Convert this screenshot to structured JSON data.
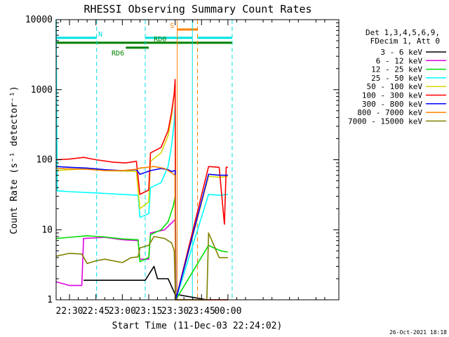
{
  "chart_data": {
    "type": "line",
    "title": "RHESSI Observing Summary Count Rates",
    "xlabel": "Start Time (11-Dec-03 22:24:02)",
    "ylabel": "Count Rate (s⁻¹ detector⁻¹)",
    "yscale": "log",
    "ylim": [
      1,
      10000
    ],
    "xlim_minutes": [
      22.4,
      183
    ],
    "x_ticks": [
      {
        "label": "22:30",
        "min": 30
      },
      {
        "label": "22:45",
        "min": 45
      },
      {
        "label": "23:00",
        "min": 60
      },
      {
        "label": "23:15",
        "min": 75
      },
      {
        "label": "23:30",
        "min": 90
      },
      {
        "label": "23:45",
        "min": 105
      },
      {
        "label": "00:00",
        "min": 120
      }
    ],
    "y_ticks": [
      {
        "label": "1",
        "v": 1
      },
      {
        "label": "10",
        "v": 10
      },
      {
        "label": "100",
        "v": 100
      },
      {
        "label": "1000",
        "v": 1000
      },
      {
        "label": "10000",
        "v": 10000
      }
    ],
    "legend_header": [
      "Det 1,3,4,5,6,9,",
      "FDecim 1, Att 0"
    ],
    "legend_position": "right",
    "series": [
      {
        "name": "3 - 6 keV",
        "color": "#000000",
        "points": [
          [
            38,
            1.9
          ],
          [
            50,
            1.9
          ],
          [
            59,
            1.9
          ],
          [
            69,
            1.9
          ],
          [
            73,
            1.9
          ],
          [
            78,
            3.0
          ],
          [
            80,
            2.0
          ],
          [
            86,
            2.0
          ],
          [
            90,
            1.2
          ],
          [
            108,
            1.0
          ],
          [
            120,
            1.0
          ]
        ]
      },
      {
        "name": "6 - 12 keV",
        "color": "#e000e0",
        "points": [
          [
            22.5,
            1.8
          ],
          [
            30,
            1.6
          ],
          [
            37,
            1.6
          ],
          [
            38,
            7.5
          ],
          [
            50,
            7.8
          ],
          [
            60,
            7.2
          ],
          [
            69,
            7.0
          ],
          [
            70,
            3.8
          ],
          [
            75,
            3.8
          ],
          [
            76,
            9.0
          ],
          [
            84,
            10.0
          ],
          [
            90,
            14.0
          ],
          [
            90.4,
            1.0
          ],
          [
            108,
            1.0
          ],
          [
            120,
            1.0
          ]
        ]
      },
      {
        "name": "12 - 25 keV",
        "color": "#00e000",
        "points": [
          [
            22.5,
            7.5
          ],
          [
            30,
            7.8
          ],
          [
            40,
            8.2
          ],
          [
            50,
            7.9
          ],
          [
            60,
            7.4
          ],
          [
            69,
            7.2
          ],
          [
            70,
            3.5
          ],
          [
            75,
            4.0
          ],
          [
            76,
            8.5
          ],
          [
            82,
            10.0
          ],
          [
            86,
            13.0
          ],
          [
            89,
            22.0
          ],
          [
            90,
            30.0
          ],
          [
            90.4,
            1.0
          ],
          [
            109,
            6.0
          ],
          [
            112,
            5.5
          ],
          [
            116,
            5.0
          ],
          [
            120,
            4.8
          ]
        ]
      },
      {
        "name": "25 - 50 keV",
        "color": "#00ffff",
        "points": [
          [
            22.4,
            10000
          ],
          [
            23,
            36
          ],
          [
            30,
            35
          ],
          [
            40,
            34
          ],
          [
            50,
            33
          ],
          [
            60,
            32
          ],
          [
            69,
            31
          ],
          [
            70,
            15
          ],
          [
            75,
            17
          ],
          [
            76,
            40
          ],
          [
            82,
            47
          ],
          [
            86,
            80
          ],
          [
            88,
            160
          ],
          [
            89.5,
            350
          ],
          [
            90,
            600
          ],
          [
            90.4,
            1.0
          ],
          [
            109,
            32
          ],
          [
            115,
            31
          ],
          [
            120,
            32
          ]
        ]
      },
      {
        "name": "50 - 100 keV",
        "color": "#d8d800",
        "points": [
          [
            22.5,
            70
          ],
          [
            30,
            72
          ],
          [
            40,
            74
          ],
          [
            50,
            70
          ],
          [
            60,
            69
          ],
          [
            68,
            68
          ],
          [
            70,
            20
          ],
          [
            75,
            25
          ],
          [
            76,
            95
          ],
          [
            82,
            125
          ],
          [
            86,
            220
          ],
          [
            88,
            420
          ],
          [
            89.5,
            900
          ],
          [
            90,
            1200
          ],
          [
            90.4,
            1.0
          ],
          [
            109,
            58
          ],
          [
            115,
            56
          ],
          [
            120,
            58
          ]
        ]
      },
      {
        "name": "100 - 300 keV",
        "color": "#ff0000",
        "points": [
          [
            22.5,
            100
          ],
          [
            30,
            102
          ],
          [
            38,
            108
          ],
          [
            45,
            100
          ],
          [
            55,
            92
          ],
          [
            62,
            90
          ],
          [
            68,
            95
          ],
          [
            70,
            32
          ],
          [
            75,
            37
          ],
          [
            76,
            125
          ],
          [
            82,
            150
          ],
          [
            86,
            260
          ],
          [
            88,
            480
          ],
          [
            89.5,
            900
          ],
          [
            90,
            1400
          ],
          [
            90.4,
            1.0
          ],
          [
            109,
            80
          ],
          [
            115,
            78
          ],
          [
            118,
            12
          ],
          [
            119,
            78
          ],
          [
            120,
            78
          ]
        ]
      },
      {
        "name": "300 - 800 keV",
        "color": "#0000ff",
        "points": [
          [
            22.5,
            80
          ],
          [
            30,
            78
          ],
          [
            40,
            76
          ],
          [
            50,
            72
          ],
          [
            60,
            70
          ],
          [
            68,
            72
          ],
          [
            70,
            62
          ],
          [
            76,
            70
          ],
          [
            82,
            75
          ],
          [
            86,
            72
          ],
          [
            88,
            68
          ],
          [
            90,
            70
          ],
          [
            90.4,
            1.0
          ],
          [
            109,
            62
          ],
          [
            115,
            60
          ],
          [
            120,
            60
          ]
        ]
      },
      {
        "name": "800 - 7000 keV",
        "color": "#ff8000",
        "points": [
          [
            22.5,
            75
          ],
          [
            30,
            74
          ],
          [
            40,
            73
          ],
          [
            50,
            70
          ],
          [
            60,
            70
          ],
          [
            68,
            73
          ],
          [
            70,
            76
          ],
          [
            78,
            80
          ],
          [
            84,
            75
          ],
          [
            88,
            65
          ],
          [
            89.9,
            60
          ],
          [
            90.2,
            1.0
          ],
          [
            91,
            1.0
          ],
          [
            108,
            1.0
          ],
          [
            120,
            1.0
          ]
        ]
      },
      {
        "name": "7000 - 15000 keV",
        "color": "#808000",
        "points": [
          [
            22.5,
            4.2
          ],
          [
            30,
            4.6
          ],
          [
            37,
            4.5
          ],
          [
            40,
            3.3
          ],
          [
            45,
            3.6
          ],
          [
            50,
            3.8
          ],
          [
            60,
            3.4
          ],
          [
            65,
            4.0
          ],
          [
            69,
            4.1
          ],
          [
            70,
            5.5
          ],
          [
            75,
            6.0
          ],
          [
            78,
            8.0
          ],
          [
            84,
            7.5
          ],
          [
            88,
            6.5
          ],
          [
            89.5,
            5.0
          ],
          [
            90.2,
            1.0
          ],
          [
            108,
            1.0
          ],
          [
            109,
            9.0
          ],
          [
            115,
            4.0
          ],
          [
            120,
            4.0
          ]
        ]
      }
    ],
    "vlines": [
      {
        "min": 45.4,
        "color": "#00e0e0",
        "style": "dashed"
      },
      {
        "min": 73.0,
        "color": "#00e0e0",
        "style": "dashed"
      },
      {
        "min": 91.2,
        "color": "#ff8000",
        "style": "solid"
      },
      {
        "min": 99.8,
        "color": "#00e0e0",
        "style": "solid"
      },
      {
        "min": 102.7,
        "color": "#ff8000",
        "style": "dashed"
      },
      {
        "min": 122.4,
        "color": "#00e0e0",
        "style": "dashed"
      }
    ],
    "flag_bars": [
      {
        "label": "N",
        "color": "#00e0e0",
        "y_log": 3.74,
        "segments": [
          [
            22.4,
            45.4
          ],
          [
            73.0,
            99.8
          ],
          [
            102.7,
            122.4
          ]
        ],
        "label_at": 47.5
      },
      {
        "label": "S",
        "color": "#ff8000",
        "y_log": 3.86,
        "segments": [
          [
            91.2,
            102.7
          ]
        ],
        "label_at": 88.2
      },
      {
        "label": "RD0",
        "color": "#008000",
        "y_log": 3.67,
        "segments": [
          [
            22.4,
            122.4
          ]
        ],
        "label_at": 81.5
      },
      {
        "label": "RD6",
        "color": "#008000",
        "y_log": 3.6,
        "segments": [
          [
            62,
            75
          ]
        ],
        "label_at": 57.5
      }
    ],
    "timestamp": "26-Oct-2021 18:18"
  }
}
